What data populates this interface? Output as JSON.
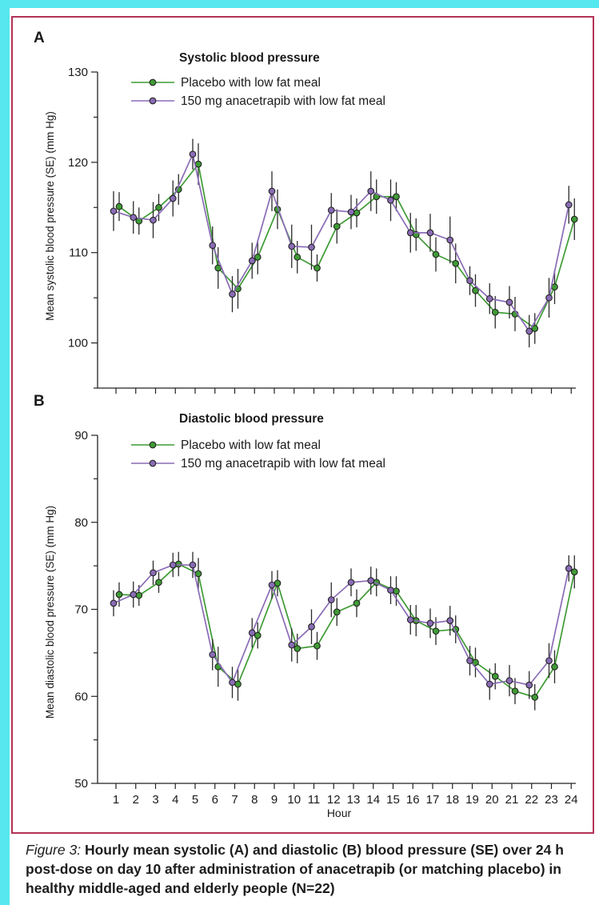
{
  "caption": {
    "figure_label": "Figure 3:",
    "text": "Hourly mean systolic (A) and diastolic (B) blood pressure (SE) over 24 h post-dose on day 10 after administration of anacetrapib (or matching placebo) in healthy middle-aged and elderly people (N=22)"
  },
  "colors": {
    "placebo": "#3f9b35",
    "anacetrapib": "#8a6cb6",
    "frame": "#b43257",
    "background": "#55e8ee"
  },
  "xlabel": "Hour",
  "chart_data": [
    {
      "type": "line",
      "panel_label": "A",
      "title": "Systolic blood pressure",
      "ylabel": "Mean systolic blood pressure (SE) (mm Hg)",
      "ylim": [
        95,
        130
      ],
      "yticks": [
        100,
        110,
        120,
        130
      ],
      "x": [
        1,
        2,
        3,
        4,
        5,
        6,
        7,
        8,
        9,
        10,
        11,
        12,
        13,
        14,
        15,
        16,
        17,
        18,
        19,
        20,
        21,
        22,
        23,
        24
      ],
      "series": [
        {
          "name": "Placebo with low fat meal",
          "values": [
            115.1,
            113.5,
            115.0,
            117.0,
            119.8,
            108.3,
            106.0,
            109.5,
            114.8,
            109.5,
            108.3,
            112.9,
            114.4,
            116.2,
            116.2,
            112.0,
            109.8,
            108.8,
            105.8,
            103.4,
            103.2,
            101.6,
            106.2,
            113.7
          ],
          "se": [
            1.6,
            1.5,
            1.5,
            1.7,
            2.3,
            2.3,
            2.2,
            1.9,
            2.2,
            1.8,
            1.5,
            1.9,
            1.6,
            1.9,
            1.6,
            1.8,
            1.9,
            2.2,
            1.8,
            1.8,
            1.9,
            1.7,
            1.9,
            2.3
          ]
        },
        {
          "name": "150 mg anacetrapib with low fat meal",
          "values": [
            114.6,
            113.9,
            113.6,
            116.0,
            120.9,
            110.8,
            105.4,
            109.1,
            116.8,
            110.7,
            110.6,
            114.7,
            114.5,
            116.8,
            115.8,
            112.2,
            112.2,
            111.4,
            106.9,
            104.9,
            104.5,
            101.3,
            105.0,
            115.3
          ],
          "se": [
            2.2,
            1.8,
            2.0,
            2.0,
            1.7,
            2.1,
            2.0,
            2.0,
            2.2,
            2.4,
            2.5,
            1.9,
            1.9,
            2.2,
            2.3,
            2.2,
            2.1,
            2.6,
            1.6,
            1.7,
            1.8,
            1.8,
            2.2,
            2.1
          ]
        }
      ]
    },
    {
      "type": "line",
      "panel_label": "B",
      "title": "Diastolic blood pressure",
      "ylabel": "Mean diastolic blood pressure (SE) (mm Hg)",
      "ylim": [
        50,
        90
      ],
      "yticks": [
        50,
        60,
        70,
        80,
        90
      ],
      "x": [
        1,
        2,
        3,
        4,
        5,
        6,
        7,
        8,
        9,
        10,
        11,
        12,
        13,
        14,
        15,
        16,
        17,
        18,
        19,
        20,
        21,
        22,
        23,
        24
      ],
      "series": [
        {
          "name": "Placebo with low fat meal",
          "values": [
            71.7,
            71.6,
            73.1,
            75.2,
            74.1,
            63.4,
            61.4,
            67.0,
            73.0,
            65.5,
            65.8,
            69.7,
            70.7,
            73.1,
            72.1,
            68.7,
            67.5,
            67.7,
            63.9,
            62.3,
            60.6,
            59.9,
            63.4,
            74.3
          ],
          "se": [
            1.4,
            1.2,
            1.2,
            1.4,
            1.8,
            2.3,
            1.9,
            1.5,
            1.5,
            1.7,
            1.6,
            1.6,
            1.6,
            1.6,
            1.7,
            1.8,
            1.6,
            1.6,
            1.7,
            1.5,
            1.5,
            1.5,
            1.9,
            1.9
          ]
        },
        {
          "name": "150 mg anacetrapib with low fat meal",
          "values": [
            70.7,
            71.7,
            74.2,
            75.1,
            75.1,
            64.8,
            61.6,
            67.3,
            72.8,
            65.9,
            68.0,
            71.1,
            73.1,
            73.3,
            72.2,
            68.8,
            68.4,
            68.7,
            64.1,
            61.4,
            61.8,
            61.3,
            64.1,
            74.7
          ],
          "se": [
            1.5,
            1.5,
            1.4,
            1.4,
            1.5,
            1.8,
            1.8,
            1.7,
            1.6,
            1.9,
            2.0,
            2.0,
            1.6,
            1.6,
            1.6,
            1.7,
            1.7,
            1.7,
            1.7,
            1.8,
            1.8,
            1.6,
            2.0,
            1.5
          ]
        }
      ]
    }
  ]
}
